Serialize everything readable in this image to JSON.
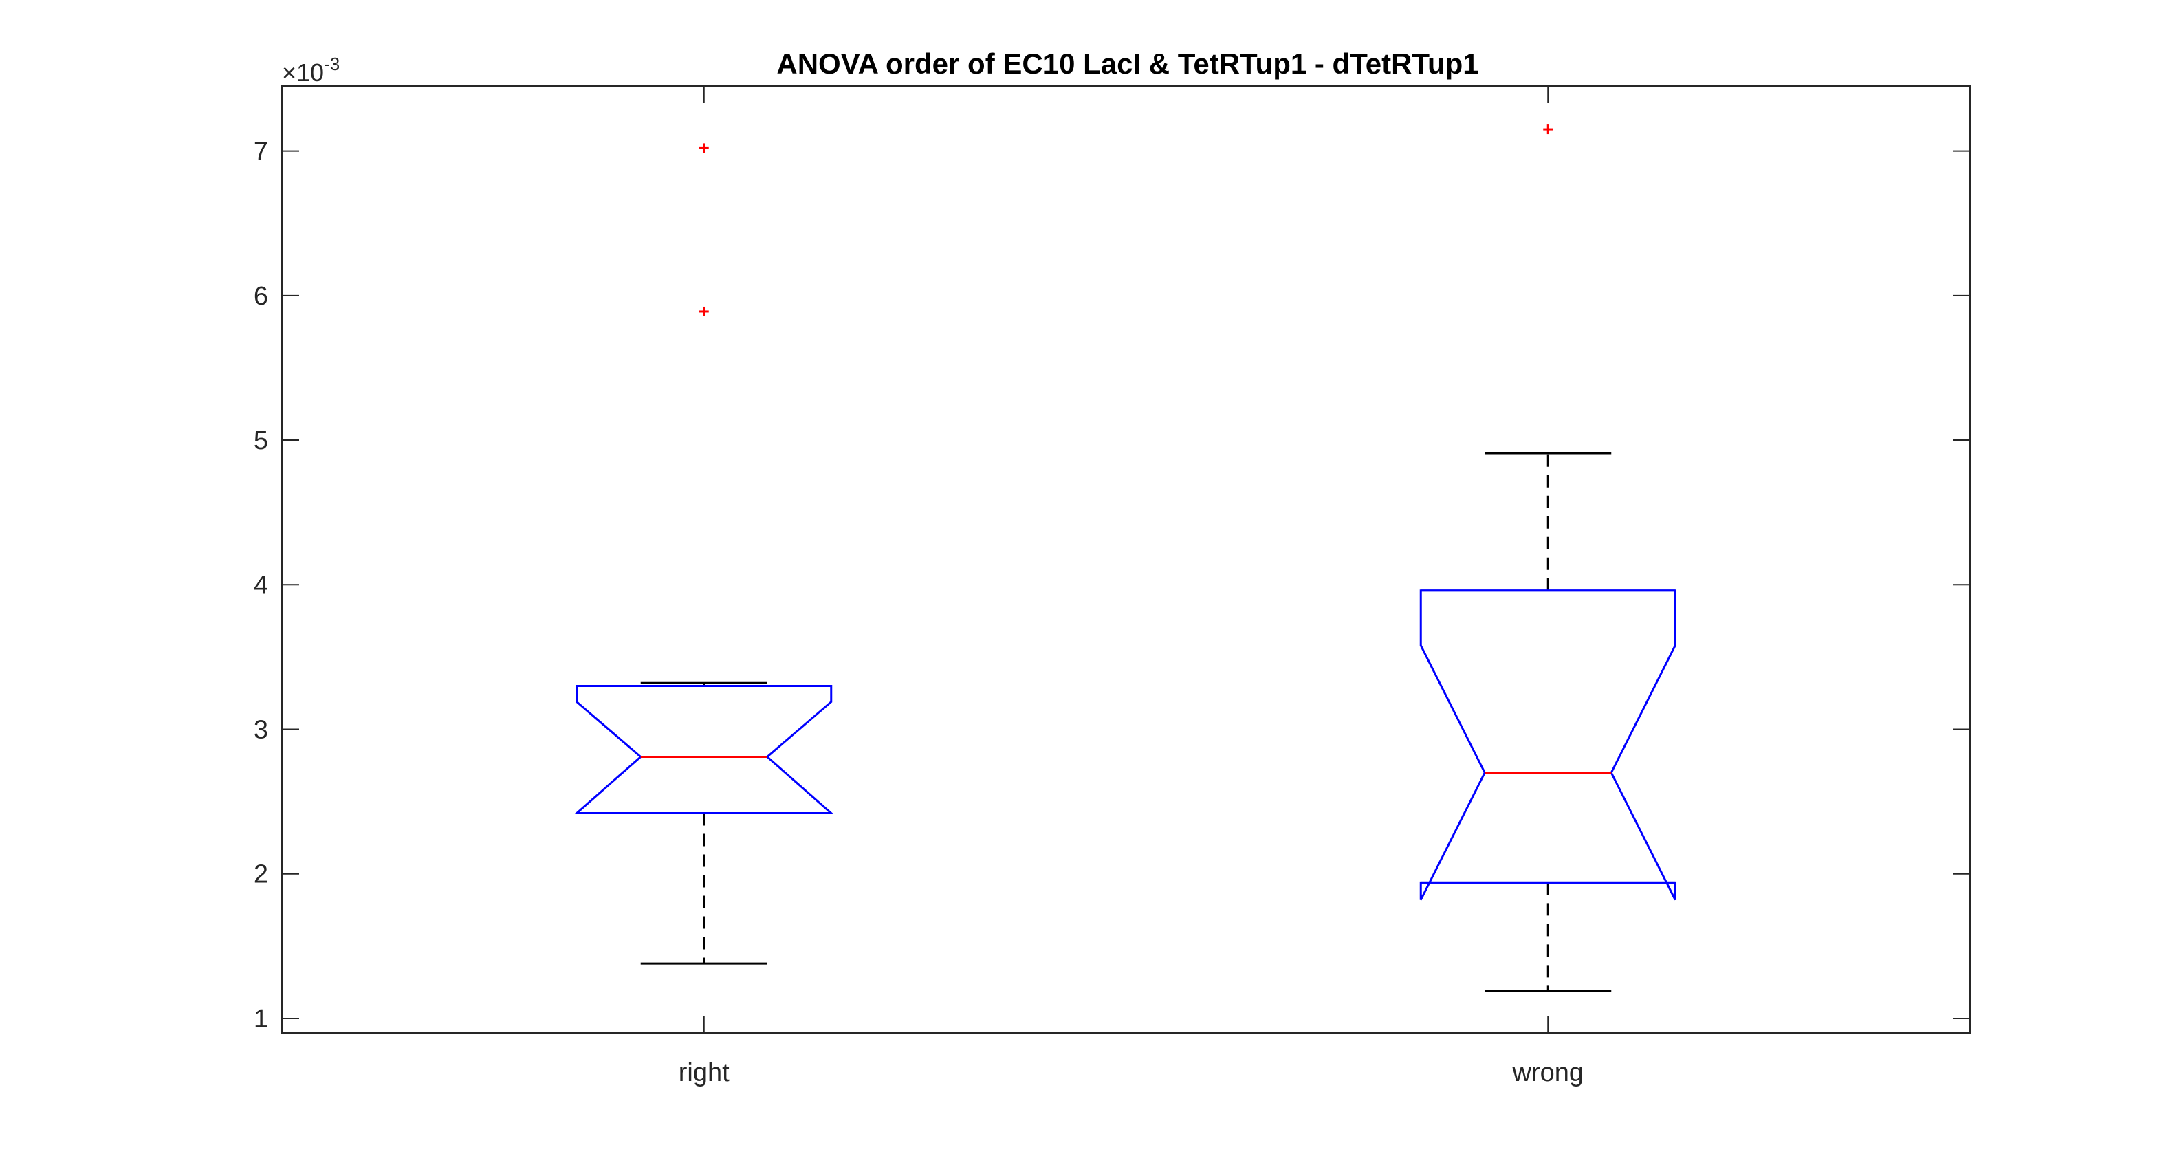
{
  "chart_data": {
    "type": "boxplot",
    "title": "ANOVA order of EC10 LacI & TetRTup1 - dTetRTup1",
    "xlabel": "",
    "ylabel": "",
    "y_exponent": {
      "base": "×10",
      "power": "-3"
    },
    "ylim": [
      0.9,
      7.45
    ],
    "yticks": [
      1,
      2,
      3,
      4,
      5,
      6,
      7
    ],
    "ytick_labels": [
      "1",
      "2",
      "3",
      "4",
      "5",
      "6",
      "7"
    ],
    "notched": true,
    "categories": [
      "right",
      "wrong"
    ],
    "boxes": [
      {
        "category": "right",
        "whisker_low": 1.38,
        "q1": 2.42,
        "median": 2.81,
        "q3": 3.3,
        "whisker_high": 3.32,
        "notch_low": 2.42,
        "notch_high": 3.19,
        "outliers": [
          5.89,
          7.02
        ]
      },
      {
        "category": "wrong",
        "whisker_low": 1.19,
        "q1": 1.94,
        "median": 2.7,
        "q3": 3.96,
        "whisker_high": 4.91,
        "notch_low": 1.82,
        "notch_high": 3.58,
        "outliers": [
          7.15
        ]
      }
    ],
    "colors": {
      "box": "#0000ff",
      "median": "#ff0000",
      "whisker": "#000000",
      "outlier": "#ff0000",
      "axis": "#262626"
    },
    "grid": false,
    "legend": "none"
  }
}
